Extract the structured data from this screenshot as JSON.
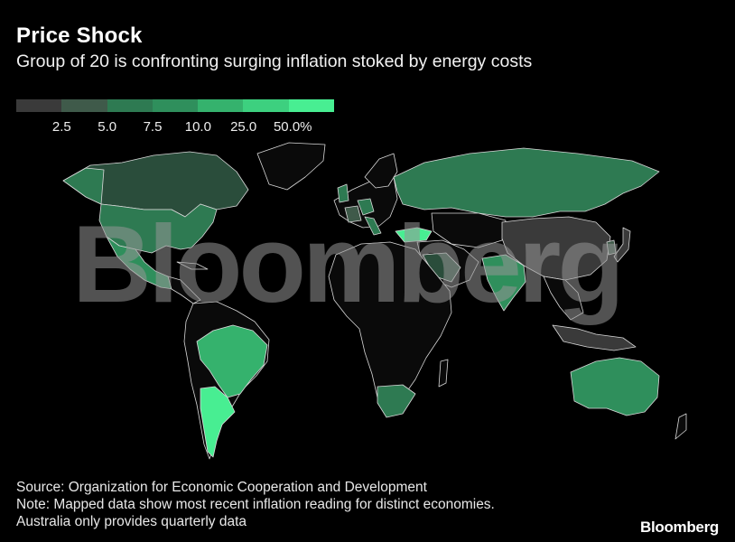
{
  "title": "Price Shock",
  "subtitle": "Group of 20 is confronting surging inflation stoked by energy costs",
  "legend": {
    "colors": [
      "#3a3a3a",
      "#3f5a4a",
      "#2e7a52",
      "#2f8f5c",
      "#35b26d",
      "#3dd07f",
      "#48ee92"
    ],
    "labels": [
      "2.5",
      "5.0",
      "7.5",
      "10.0",
      "25.0",
      "50.0%"
    ]
  },
  "watermark": "Bloomberg",
  "footer": {
    "source": "Source: Organization for Economic Cooperation and Development",
    "note": "Note: Mapped data show most recent inflation reading for distinct economies.",
    "note2": "Australia only provides quarterly data"
  },
  "brand": "Bloomberg",
  "colors": {
    "background": "#000000",
    "no_data": "#0a0a0a",
    "border": "#d8d8d8"
  }
}
